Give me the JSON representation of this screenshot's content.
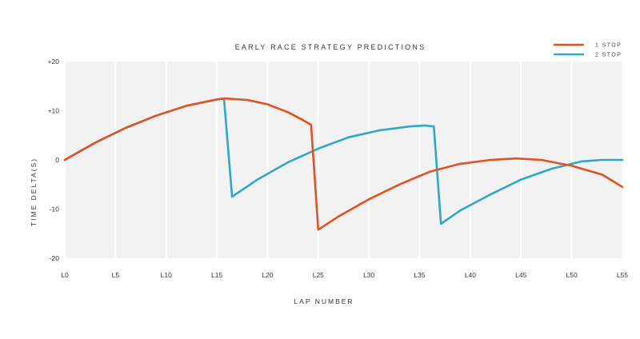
{
  "chart_data": {
    "type": "line",
    "title": "EARLY RACE STRATEGY PREDICTIONS",
    "xlabel": "LAP NUMBER",
    "ylabel": "TIME DELTA(S)",
    "xlim": [
      0,
      55
    ],
    "ylim": [
      -20,
      20
    ],
    "x_ticks": [
      "L0",
      "L5",
      "L10",
      "L15",
      "L20",
      "L25",
      "L30",
      "L35",
      "L40",
      "L45",
      "L50",
      "L55"
    ],
    "y_ticks": [
      "+20",
      "+10",
      "0",
      "-10",
      "-20"
    ],
    "grid": true,
    "legend": "top-right",
    "series": [
      {
        "name": "1 STOP",
        "color": "#E0521F",
        "points": [
          [
            0,
            0
          ],
          [
            3,
            3.5
          ],
          [
            6,
            6.5
          ],
          [
            9,
            9
          ],
          [
            12,
            11
          ],
          [
            15,
            12.3
          ],
          [
            15.7,
            12.5
          ],
          [
            18,
            12.2
          ],
          [
            20,
            11.3
          ],
          [
            22,
            9.7
          ],
          [
            23.5,
            8.1
          ],
          [
            24.3,
            7.1
          ],
          [
            25,
            -14.2
          ],
          [
            27,
            -11.5
          ],
          [
            30,
            -8
          ],
          [
            33,
            -5
          ],
          [
            36,
            -2.4
          ],
          [
            39,
            -0.8
          ],
          [
            42,
            0
          ],
          [
            44.5,
            0.3
          ],
          [
            47,
            0
          ],
          [
            50,
            -1.2
          ],
          [
            53,
            -3
          ],
          [
            55,
            -5.5
          ]
        ]
      },
      {
        "name": "2 STOP",
        "color": "#2EA7C9",
        "points": [
          [
            0,
            0
          ],
          [
            3,
            3.5
          ],
          [
            6,
            6.5
          ],
          [
            9,
            9
          ],
          [
            12,
            11
          ],
          [
            15,
            12.3
          ],
          [
            15.7,
            12.5
          ],
          [
            16.5,
            -7.5
          ],
          [
            19,
            -4
          ],
          [
            22,
            -0.5
          ],
          [
            25,
            2.3
          ],
          [
            28,
            4.6
          ],
          [
            31,
            6
          ],
          [
            34,
            6.8
          ],
          [
            35.5,
            7
          ],
          [
            36.4,
            6.8
          ],
          [
            37.1,
            -13
          ],
          [
            39,
            -10.3
          ],
          [
            42,
            -7
          ],
          [
            45,
            -4
          ],
          [
            48,
            -1.8
          ],
          [
            51,
            -0.3
          ],
          [
            53,
            0
          ],
          [
            55,
            0
          ]
        ]
      }
    ]
  }
}
